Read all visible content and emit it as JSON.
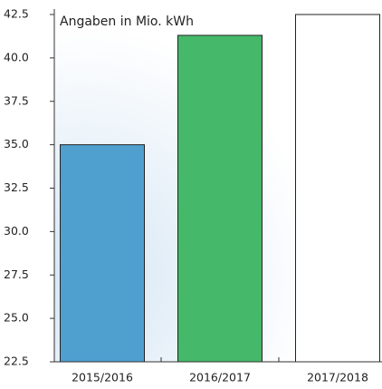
{
  "chart_data": {
    "type": "bar",
    "title": "Angaben in Mio. kWh",
    "categories": [
      "2015/2016",
      "2016/2017",
      "2017/2018"
    ],
    "values": [
      35.0,
      41.3,
      42.5
    ],
    "colors": [
      "#4f9fcf",
      "#45b86a",
      "#ffffff"
    ],
    "ylim": [
      22.5,
      42.5
    ],
    "yticks": [
      22.5,
      {
        "value": 25,
        "label": "25.0"
      },
      27.5,
      {
        "value": 30,
        "label": "30.0"
      },
      32.5,
      {
        "value": 35,
        "label": "35.0"
      },
      37.5,
      {
        "value": 40,
        "label": "40.0"
      },
      42.5
    ],
    "grid": false
  }
}
